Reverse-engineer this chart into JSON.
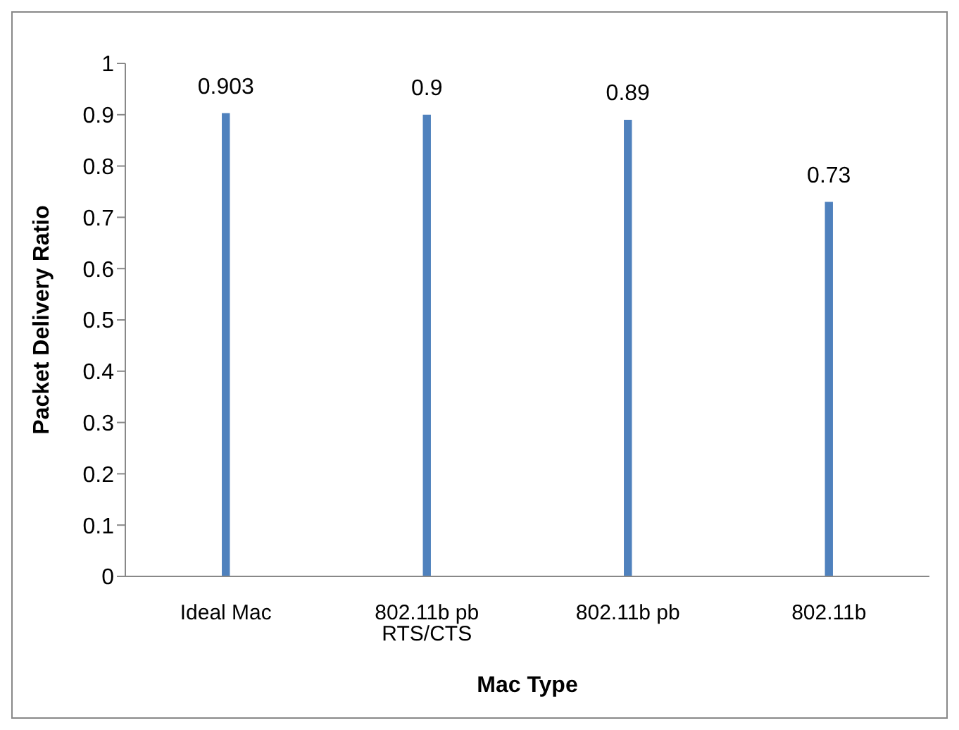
{
  "chart_data": {
    "type": "bar",
    "xlabel": "Mac Type",
    "ylabel": "Packet Delivery Ratio",
    "categories": [
      "Ideal Mac",
      "802.11b pb RTS/CTS",
      "802.11b pb",
      "802.11b"
    ],
    "values": [
      0.903,
      0.9,
      0.89,
      0.73
    ],
    "color": "#4f81bd",
    "ylim": [
      0,
      1
    ],
    "yticks": [
      0,
      0.1,
      0.2,
      0.3,
      0.4,
      0.5,
      0.6,
      0.7,
      0.8,
      0.9,
      1
    ],
    "data_labels": true,
    "grid": false,
    "legend": false
  }
}
